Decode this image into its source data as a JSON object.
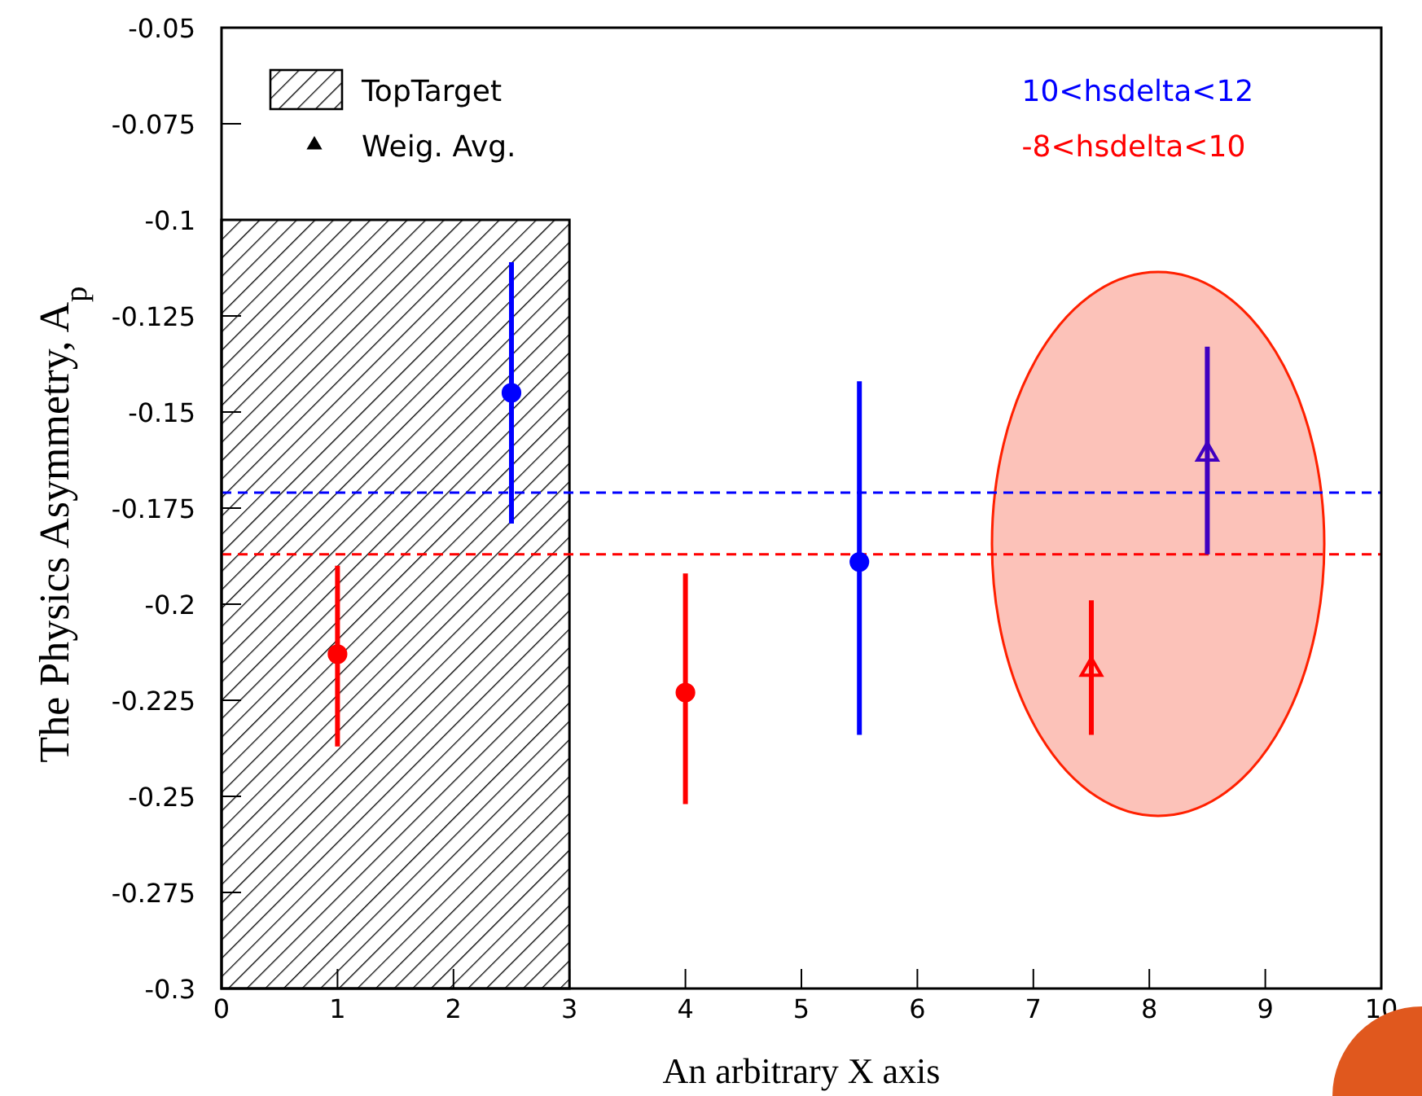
{
  "chart_data": {
    "type": "scatter",
    "xlabel": "An arbitrary X axis",
    "ylabel": "The Physics Asymmetry, A$_{p}$",
    "xlim": [
      0,
      10
    ],
    "xticks": [
      0,
      1,
      2,
      3,
      4,
      5,
      6,
      7,
      8,
      9,
      10
    ],
    "ylim": [
      -0.3,
      -0.05
    ],
    "yticks": [
      -0.3,
      -0.275,
      -0.25,
      -0.225,
      -0.2,
      -0.175,
      -0.15,
      -0.125,
      -0.1,
      -0.075,
      -0.05
    ],
    "grid": false,
    "legend": "top left",
    "line_style": "solid",
    "series": [
      {
        "name": "TopTarget",
        "type": "bar",
        "color": "#000000",
        "x": [
          1.5
        ],
        "base": [
          -0.3
        ],
        "values": [
          0.2
        ]
      },
      {
        "marker": "triangle",
        "color": "#ff0000",
        "x": [
          7.5
        ],
        "values": [
          -0.217
        ],
        "errors": [
          [
            -0.234,
            -0.199
          ]
        ]
      },
      {
        "marker": "triangle",
        "color": "#4000c0",
        "x": [
          8.5
        ],
        "values": [
          -0.161
        ],
        "errors": [
          [
            -0.187,
            -0.133
          ]
        ]
      },
      {
        "name": "10<hsdelta<12",
        "marker": "circle",
        "color": "#0000ff",
        "x": [
          2.5,
          5.5
        ],
        "values": [
          -0.145,
          -0.189
        ],
        "errors": [
          [
            -0.179,
            -0.111
          ],
          [
            -0.234,
            -0.142
          ]
        ]
      },
      {
        "name": "-8<hsdelta<10",
        "marker": "circle",
        "color": "#ff0000",
        "x": [
          1,
          4
        ],
        "values": [
          -0.213,
          -0.223
        ],
        "errors": [
          [
            -0.237,
            -0.19
          ],
          [
            -0.252,
            -0.192
          ]
        ]
      }
    ],
    "annotations": [
      "Weig. Avg."
    ],
    "ref_lines": [
      {
        "axis": "y",
        "value": -0.171,
        "color": "#0000ff",
        "line_style": "dashed"
      },
      {
        "axis": "y",
        "value": -0.187,
        "color": "#ff0000",
        "line_style": "dashed"
      }
    ]
  }
}
